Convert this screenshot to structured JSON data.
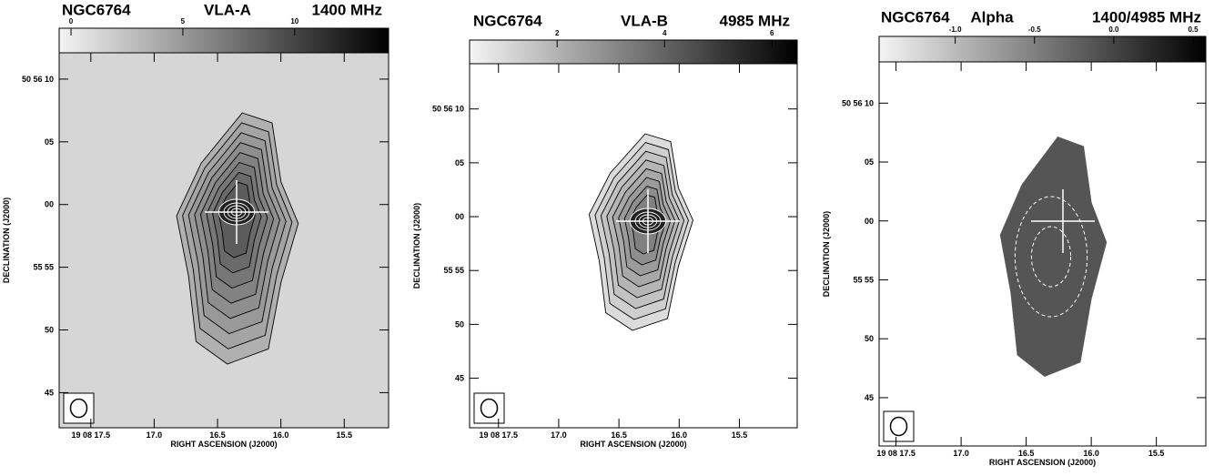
{
  "chart_data": [
    {
      "type": "image",
      "title": "NGC6764",
      "subtitle": "VLA-A",
      "annotation": "1400 MHz",
      "xlabel": "RIGHT ASCENSION (J2000)",
      "ylabel": "DECLINATION (J2000)",
      "xlim": [
        17.75,
        15.15
      ],
      "xticks": [
        {
          "value": 17.5,
          "label": "19 08 17.5"
        },
        {
          "value": 17,
          "label": "17.0"
        },
        16.5,
        {
          "value": 16,
          "label": "16.0"
        },
        15.5
      ],
      "ylim": [
        42.2,
        72.1
      ],
      "yticks": [
        {
          "value": 70,
          "label": "50 56 10"
        },
        {
          "value": 65,
          "label": "05"
        },
        {
          "value": 60,
          "label": "00"
        },
        {
          "value": 55,
          "label": "55 55"
        },
        50,
        45
      ],
      "colorbar": {
        "lim": [
          -0.53,
          14.2
        ],
        "ticks": [
          0,
          5,
          10
        ]
      }
    },
    {
      "type": "image",
      "title": "NGC6764",
      "subtitle": "VLA-B",
      "annotation": "4985 MHz",
      "xlabel": "RIGHT ASCENSION (J2000)",
      "ylabel": "DECLINATION (J2000)",
      "xlim": [
        17.74,
        15.02
      ],
      "xticks": [
        {
          "value": 17.5,
          "label": "19 08 17.5"
        },
        {
          "value": 17,
          "label": "17.0"
        },
        16.5,
        {
          "value": 16,
          "label": "16.0"
        },
        15.5
      ],
      "ylim": [
        40.4,
        74.2
      ],
      "yticks": [
        {
          "value": 70,
          "label": "50 56 10"
        },
        {
          "value": 65,
          "label": "05"
        },
        {
          "value": 60,
          "label": "00"
        },
        {
          "value": 55,
          "label": "55 55"
        },
        50,
        45
      ],
      "colorbar": {
        "lim": [
          0.37,
          6.47
        ],
        "ticks": [
          2,
          4,
          6
        ]
      }
    },
    {
      "type": "image",
      "title": "NGC6764",
      "subtitle": "Alpha",
      "annotation": "1400/4985 MHz",
      "xlabel": "RIGHT ASCENSION (J2000)",
      "ylabel": "DECLINATION (J2000)",
      "xlim": [
        17.63,
        15.12
      ],
      "xticks": [
        {
          "value": 17.5,
          "label": "19 08 17.5"
        },
        {
          "value": 17,
          "label": "17.0"
        },
        16.5,
        {
          "value": 16,
          "label": "16.0"
        },
        15.5
      ],
      "ylim": [
        40.9,
        73.5
      ],
      "yticks": [
        {
          "value": 70,
          "label": "50 56 10"
        },
        {
          "value": 65,
          "label": "05"
        },
        {
          "value": 60,
          "label": "00"
        },
        {
          "value": 55,
          "label": "55 55"
        },
        50,
        45
      ],
      "colorbar": {
        "lim": [
          -1.48,
          0.58
        ],
        "ticks": [
          {
            "value": -1,
            "label": "-1.0"
          },
          -0.5,
          {
            "value": 0,
            "label": "0.0"
          },
          0.5
        ]
      }
    }
  ]
}
